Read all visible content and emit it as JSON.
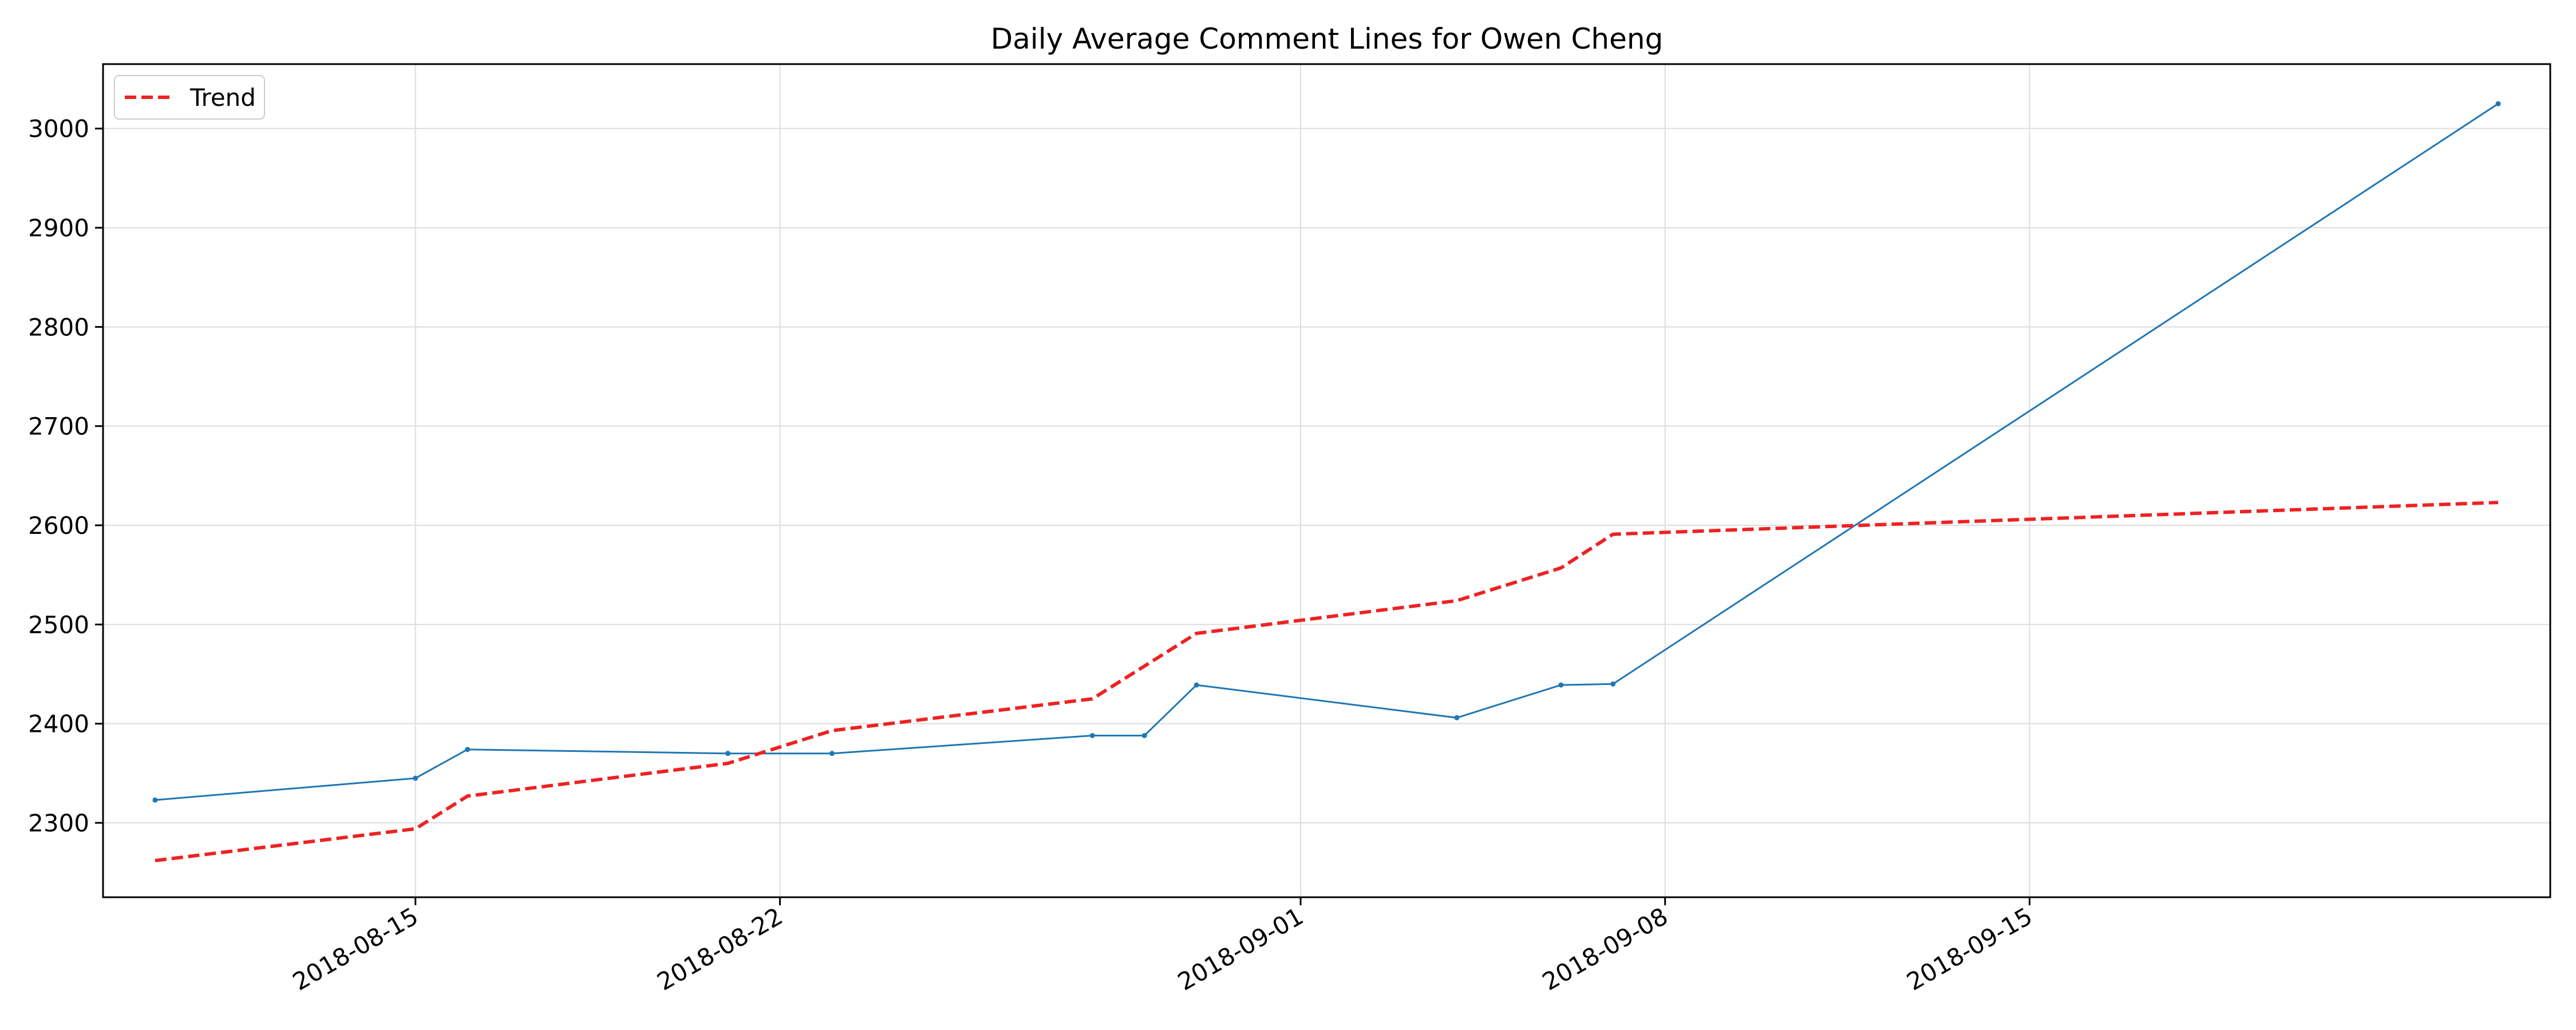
{
  "chart_data": {
    "type": "line",
    "title": "Daily Average Comment Lines for Owen Cheng",
    "xlabel": "",
    "ylabel": "",
    "x_axis_type": "date",
    "xlim": [
      "2018-08-09",
      "2018-09-25"
    ],
    "ylim": [
      2225,
      3065
    ],
    "x_ticks": [
      "2018-08-15",
      "2018-08-22",
      "2018-09-01",
      "2018-09-08",
      "2018-09-15"
    ],
    "y_ticks": [
      2300,
      2400,
      2500,
      2600,
      2700,
      2800,
      2900,
      3000
    ],
    "grid": true,
    "legend_position": "top-left",
    "series": [
      {
        "name": "",
        "color": "#1f77b4",
        "style": "solid",
        "marker": "point",
        "points": [
          {
            "x": "2018-08-10",
            "y": 2323
          },
          {
            "x": "2018-08-15",
            "y": 2345
          },
          {
            "x": "2018-08-16",
            "y": 2374
          },
          {
            "x": "2018-08-21",
            "y": 2370
          },
          {
            "x": "2018-08-23",
            "y": 2370
          },
          {
            "x": "2018-08-28",
            "y": 2388
          },
          {
            "x": "2018-08-29",
            "y": 2388
          },
          {
            "x": "2018-08-30",
            "y": 2439
          },
          {
            "x": "2018-09-04",
            "y": 2406
          },
          {
            "x": "2018-09-06",
            "y": 2439
          },
          {
            "x": "2018-09-07",
            "y": 2440
          },
          {
            "x": "2018-09-24",
            "y": 3025
          }
        ]
      },
      {
        "name": "Trend",
        "color": "#ee2222",
        "style": "dashed",
        "marker": "none",
        "points": [
          {
            "x": "2018-08-10",
            "y": 2262
          },
          {
            "x": "2018-08-15",
            "y": 2294
          },
          {
            "x": "2018-08-16",
            "y": 2327
          },
          {
            "x": "2018-08-21",
            "y": 2360
          },
          {
            "x": "2018-08-23",
            "y": 2393
          },
          {
            "x": "2018-08-28",
            "y": 2425
          },
          {
            "x": "2018-08-30",
            "y": 2491
          },
          {
            "x": "2018-09-04",
            "y": 2524
          },
          {
            "x": "2018-09-06",
            "y": 2557
          },
          {
            "x": "2018-09-07",
            "y": 2591
          },
          {
            "x": "2018-09-24",
            "y": 2623
          }
        ]
      }
    ]
  }
}
